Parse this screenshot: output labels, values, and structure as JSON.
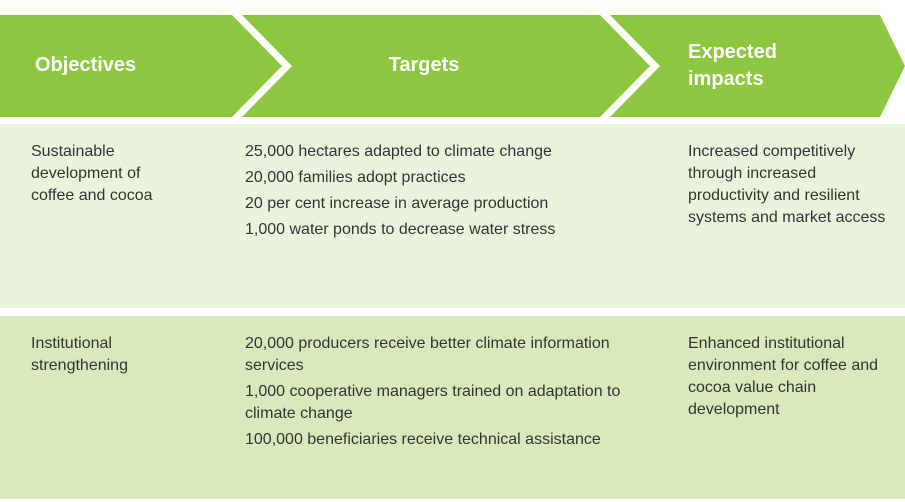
{
  "header": {
    "objectives": "Objectives",
    "targets": "Targets",
    "impacts": "Expected impacts"
  },
  "rows": [
    {
      "objective": "Sustainable development of coffee and cocoa",
      "targets": [
        "25,000 hectares adapted to climate change",
        "20,000 families adopt practices",
        "20 per cent increase in average production",
        "1,000 water ponds to decrease water stress"
      ],
      "impact": "Increased competitively through increased productivity and resilient systems and market access"
    },
    {
      "objective": "Institutional strengthening",
      "targets": [
        "20,000 producers receive better climate information services",
        "1,000 cooperative managers trained on adaptation to climate change",
        "100,000 beneficiaries receive technical assistance"
      ],
      "impact": "Enhanced institutional environment for coffee and cocoa value chain development"
    }
  ]
}
